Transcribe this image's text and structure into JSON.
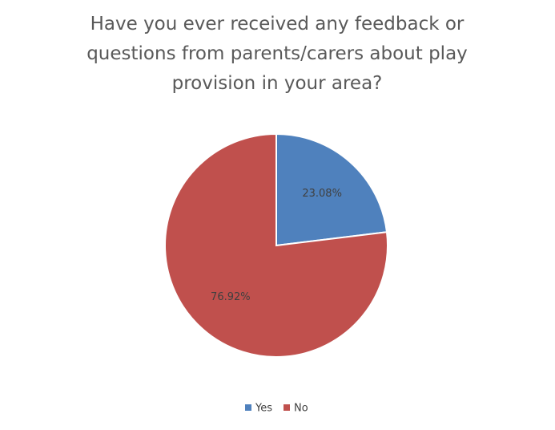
{
  "chart_data": {
    "type": "pie",
    "title": "Have you ever received any feedback or questions from parents/carers about play provision in your area?",
    "categories": [
      "Yes",
      "No"
    ],
    "values": [
      23.08,
      76.92
    ],
    "value_labels": [
      "23.08%",
      "76.92%"
    ],
    "colors": [
      "#4f81bd",
      "#c0504d"
    ],
    "legend": "bottom"
  }
}
